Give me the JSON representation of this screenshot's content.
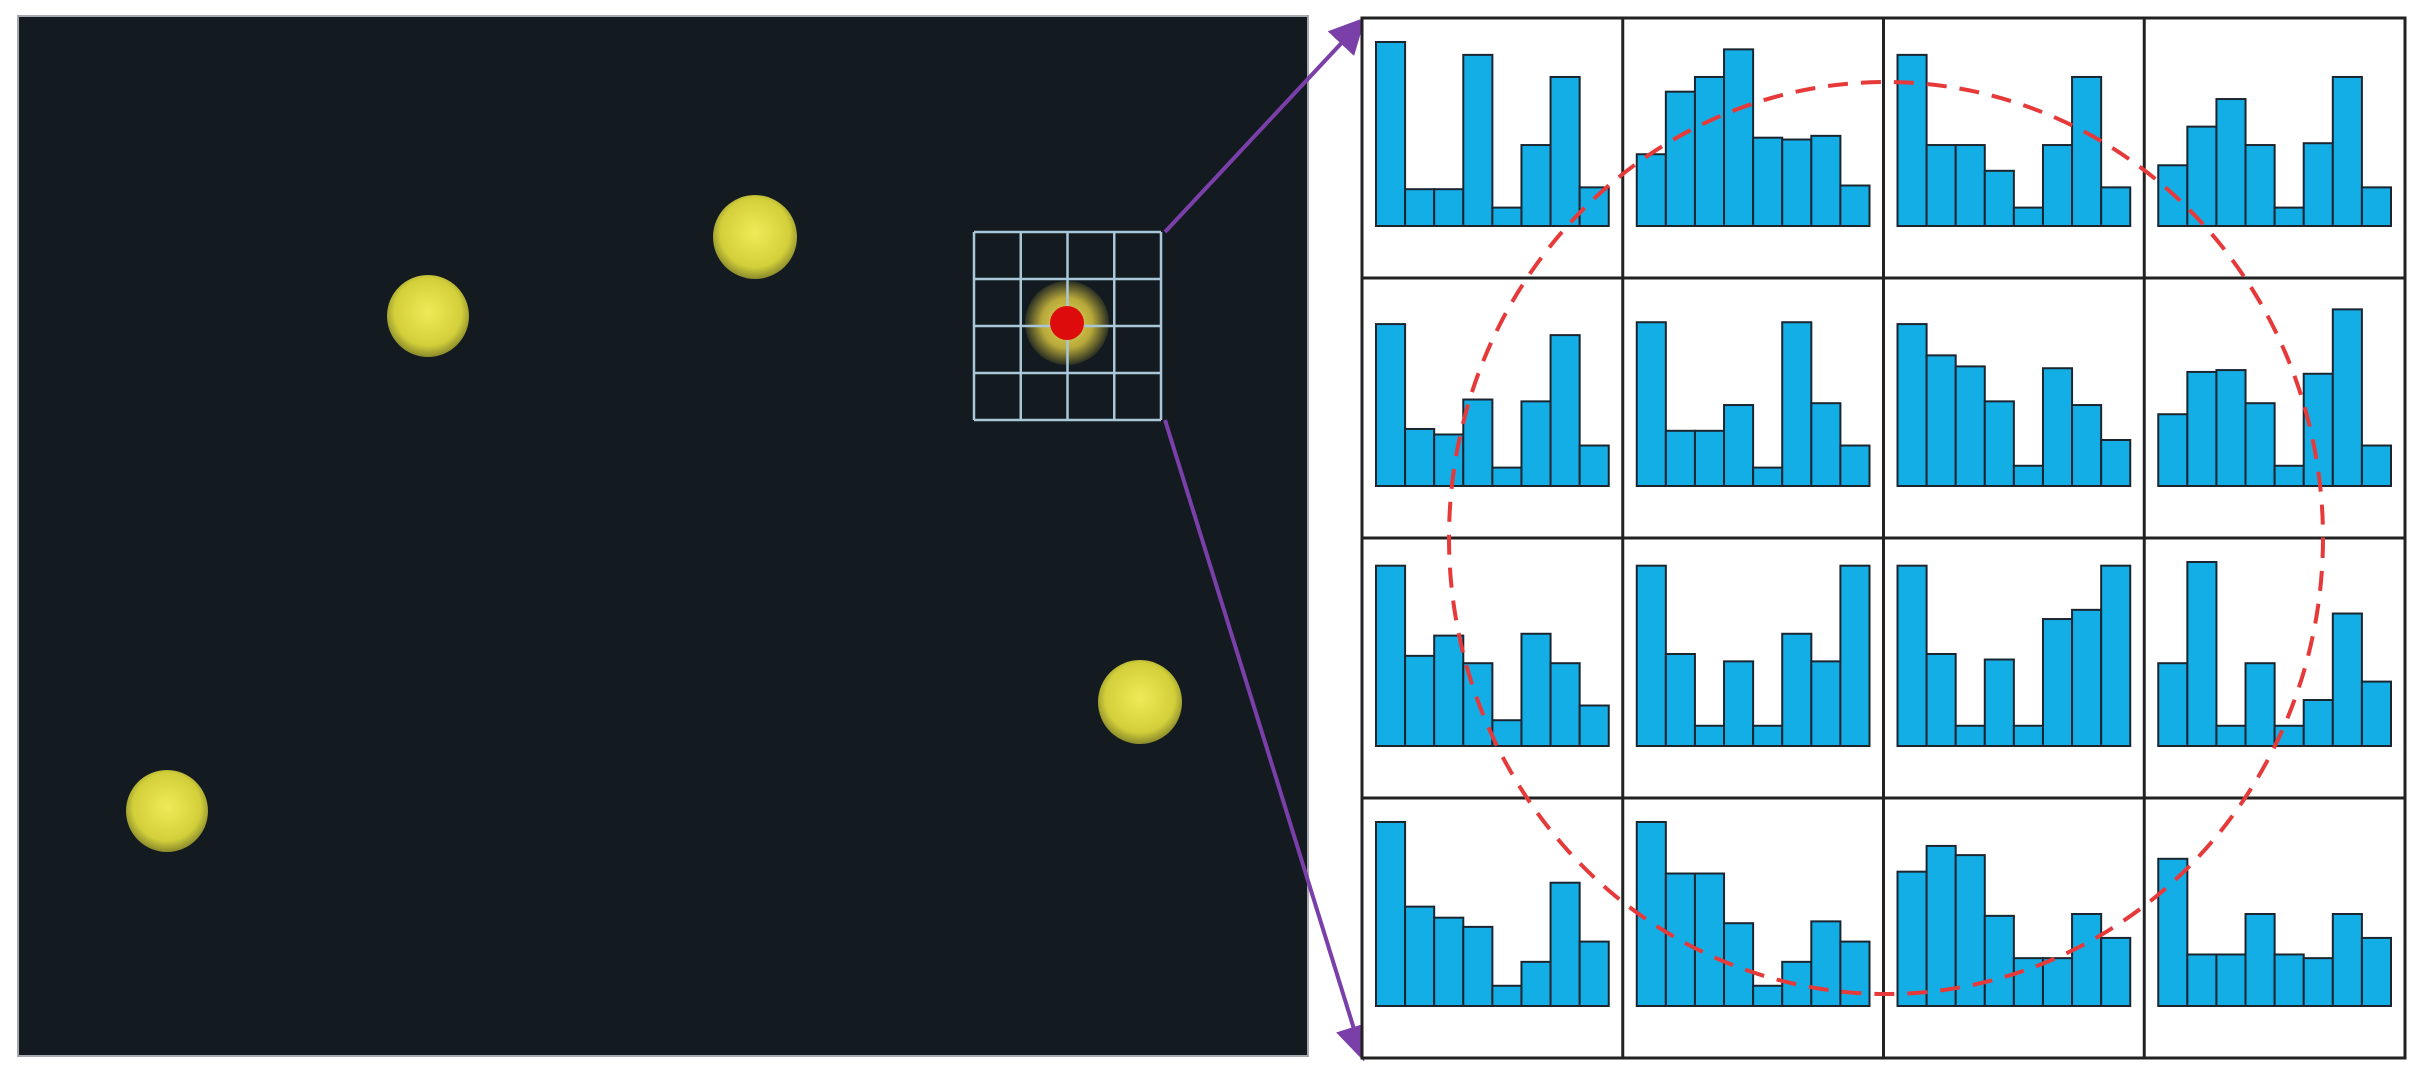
{
  "colors": {
    "background": "#ffffff",
    "photo_bg": "#131a20",
    "dot_fill": "#d8d640",
    "dot_edge": "#b7b52c",
    "roi_grid": "#a9c7d8",
    "keypoint": "#dd0b0b",
    "arrow": "#7a3fa8",
    "bar_fill": "#14aee6",
    "bar_stroke": "#1b2530",
    "cell_border": "#222222",
    "circle": "#e63a3a"
  },
  "icons": {
    "keypoint": "red-dot-icon",
    "arrow_head": "arrowhead-icon"
  },
  "photo": {
    "dots": [
      {
        "name": "dot-1"
      },
      {
        "name": "dot-2"
      },
      {
        "name": "dot-3"
      },
      {
        "name": "dot-4"
      },
      {
        "name": "dot-5"
      }
    ]
  },
  "roi": {
    "rows": 4,
    "cols": 4
  },
  "histograms": {
    "rows": 4,
    "cols": 4,
    "bins": 8,
    "max": 1.0,
    "cells": [
      [
        1.0,
        0.2,
        0.2,
        0.93,
        0.1,
        0.44,
        0.81,
        0.21
      ],
      [
        0.39,
        0.73,
        0.81,
        0.96,
        0.48,
        0.47,
        0.49,
        0.22
      ],
      [
        0.93,
        0.44,
        0.44,
        0.3,
        0.1,
        0.44,
        0.81,
        0.21
      ],
      [
        0.33,
        0.54,
        0.69,
        0.44,
        0.1,
        0.45,
        0.81,
        0.21
      ],
      [
        0.88,
        0.31,
        0.28,
        0.47,
        0.1,
        0.46,
        0.82,
        0.22
      ],
      [
        0.89,
        0.3,
        0.3,
        0.44,
        0.1,
        0.89,
        0.45,
        0.22
      ],
      [
        0.88,
        0.71,
        0.65,
        0.46,
        0.11,
        0.64,
        0.44,
        0.25
      ],
      [
        0.39,
        0.62,
        0.63,
        0.45,
        0.11,
        0.61,
        0.96,
        0.22
      ],
      [
        0.98,
        0.49,
        0.6,
        0.45,
        0.14,
        0.61,
        0.45,
        0.22
      ],
      [
        0.98,
        0.5,
        0.11,
        0.46,
        0.11,
        0.61,
        0.46,
        0.98
      ],
      [
        0.98,
        0.5,
        0.11,
        0.47,
        0.11,
        0.69,
        0.74,
        0.98
      ],
      [
        0.45,
        1.0,
        0.11,
        0.45,
        0.11,
        0.25,
        0.72,
        0.35
      ],
      [
        1.0,
        0.54,
        0.48,
        0.43,
        0.11,
        0.24,
        0.67,
        0.35
      ],
      [
        1.0,
        0.72,
        0.72,
        0.45,
        0.11,
        0.24,
        0.46,
        0.35
      ],
      [
        0.73,
        0.87,
        0.82,
        0.49,
        0.26,
        0.26,
        0.5,
        0.37
      ],
      [
        0.8,
        0.28,
        0.28,
        0.5,
        0.28,
        0.26,
        0.5,
        0.37
      ]
    ]
  }
}
